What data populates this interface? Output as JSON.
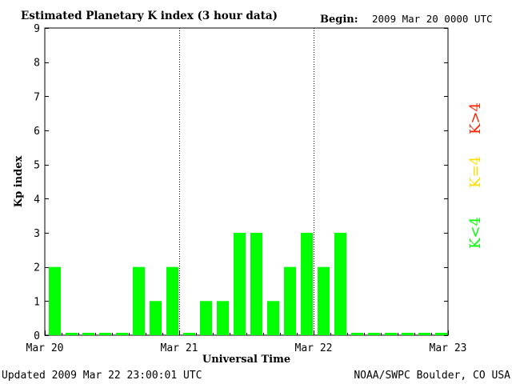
{
  "header": {
    "title": "Estimated Planetary K index (3 hour data)",
    "begin_label": "Begin:",
    "begin_value": "2009 Mar 20 0000 UTC"
  },
  "footer": {
    "updated_label": "Updated",
    "updated_value": "2009 Mar 22 23:00:01 UTC",
    "source": "NOAA/SWPC Boulder, CO USA"
  },
  "legend": [
    {
      "label": "K>4",
      "color": "#ff2200"
    },
    {
      "label": "K=4",
      "color": "#ffdd00"
    },
    {
      "label": "K<4",
      "color": "#00ff00"
    }
  ],
  "chart_data": {
    "type": "bar",
    "title": "Estimated Planetary K index (3 hour data)",
    "xlabel": "Universal Time",
    "ylabel": "Kp index",
    "ylim": [
      0,
      9
    ],
    "yticks": [
      0,
      1,
      2,
      3,
      4,
      5,
      6,
      7,
      8,
      9
    ],
    "xticks": [
      "Mar 20",
      "Mar 21",
      "Mar 22",
      "Mar 23"
    ],
    "grid": false,
    "day_dividers": [
      "Mar 21",
      "Mar 22"
    ],
    "bar_color": "#00ff00",
    "periods_per_day": 8,
    "total_periods": 24,
    "series": [
      {
        "values": [
          2,
          0,
          0,
          0,
          0,
          2,
          1,
          2,
          0,
          1,
          1,
          3,
          3,
          1,
          2,
          3,
          2,
          3,
          0,
          0,
          0,
          0,
          0,
          0
        ]
      }
    ]
  }
}
